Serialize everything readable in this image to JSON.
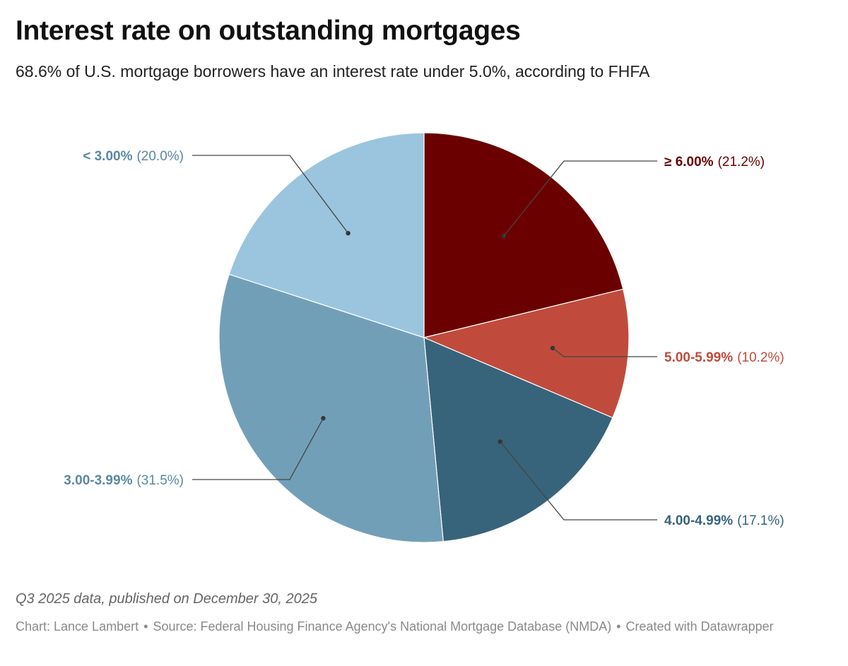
{
  "header": {
    "title": "Interest rate on outstanding mortgages",
    "subtitle": "68.6% of U.S. mortgage borrowers have an interest rate under 5.0%, according to FHFA"
  },
  "chart_data": {
    "type": "pie",
    "title": "Interest rate on outstanding mortgages",
    "subtitle": "68.6% of U.S. mortgage borrowers have an interest rate under 5.0%, according to FHFA",
    "start_angle_deg": 0,
    "direction": "clockwise",
    "slices": [
      {
        "label": "≥ 6.00%",
        "value": 21.2,
        "value_label": "(21.2%)",
        "color": "#6b0000",
        "text_color": "#6b0000"
      },
      {
        "label": "5.00-5.99%",
        "value": 10.2,
        "value_label": "(10.2%)",
        "color": "#c04b3c",
        "text_color": "#c04b3c"
      },
      {
        "label": "4.00-4.99%",
        "value": 17.1,
        "value_label": "(17.1%)",
        "color": "#37647b",
        "text_color": "#37647b"
      },
      {
        "label": "3.00-3.99%",
        "value": 31.5,
        "value_label": "(31.5%)",
        "color": "#729fb8",
        "text_color": "#5a88a3"
      },
      {
        "label": "< 3.00%",
        "value": 20.0,
        "value_label": "(20.0%)",
        "color": "#9bc5de",
        "text_color": "#5a88a3"
      }
    ]
  },
  "footer": {
    "note": "Q3 2025 data, published on December 30, 2025",
    "credit_chart": "Chart: Lance Lambert",
    "separator": "•",
    "credit_source": "Source: Federal Housing Finance Agency's National Mortgage Database (NMDA)",
    "credit_tool": "Created with Datawrapper"
  }
}
